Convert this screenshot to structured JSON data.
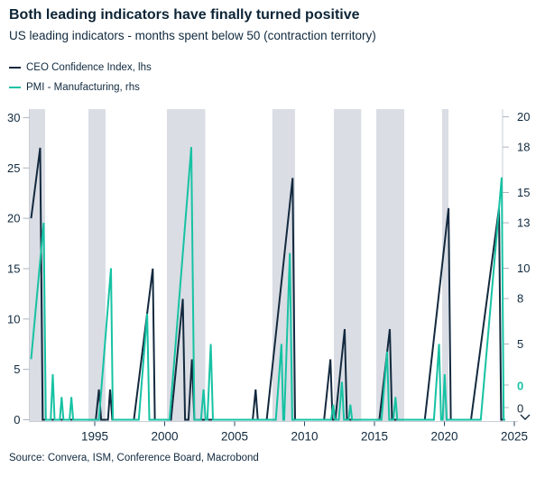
{
  "header": {
    "title": "Both leading indicators have finally turned positive",
    "subtitle": "US leading indicators - months spent below 50 (contraction territory)"
  },
  "source": "Source: Convera, ISM, Conference Board, Macrobond",
  "colors": {
    "navy": "#13293e",
    "teal": "#16c2a3",
    "band": "#dadde4",
    "axis_line": "#c9cdd6",
    "side_tick": "#aeb5c0",
    "bottom_tick": "#2a4763",
    "text": "#10293e"
  },
  "chart_data": {
    "type": "line",
    "title": "Both leading indicators have finally turned positive",
    "subtitle": "US leading indicators - months spent below 50 (contraction territory)",
    "legend_position": "top-left",
    "grid": false,
    "x_axis": {
      "ticks": [
        1995,
        2000,
        2005,
        2010,
        2015,
        2020,
        2025
      ],
      "range": [
        1990.35,
        2025.8
      ]
    },
    "left_axis": {
      "side": "left",
      "ticks": [
        0,
        5,
        10,
        15,
        20,
        25,
        30
      ],
      "range": [
        0,
        31
      ]
    },
    "right_axis": {
      "side": "right",
      "ticks": [
        {
          "label": "20",
          "value": 20
        },
        {
          "label": "18",
          "value": 18
        },
        {
          "label": "15",
          "value": 15
        },
        {
          "label": "13",
          "value": 13
        },
        {
          "label": "10",
          "value": 10
        },
        {
          "label": "8",
          "value": 8
        },
        {
          "label": "5",
          "value": 5
        }
      ],
      "range": [
        0,
        20.5
      ],
      "last_value_labels": [
        {
          "text": "0",
          "series": "PMI - Manufacturing, rhs",
          "color": "teal"
        },
        {
          "text": "0",
          "series": "CEO Confidence Index, lhs",
          "color": "navy"
        }
      ]
    },
    "shaded_bands": [
      [
        1990.35,
        1991.45
      ],
      [
        1994.55,
        1995.77
      ],
      [
        2000.16,
        2002.9
      ],
      [
        2007.7,
        2009.32
      ],
      [
        2012.1,
        2014.05
      ],
      [
        2015.13,
        2017.13
      ],
      [
        2019.84,
        2020.29
      ]
    ],
    "series": [
      {
        "name": "CEO Confidence Index, lhs",
        "axis": "lhs",
        "color_key": "navy",
        "points": [
          [
            1990.45,
            20
          ],
          [
            1991.1,
            27
          ],
          [
            1991.28,
            0
          ],
          [
            1995.08,
            0
          ],
          [
            1995.3,
            3
          ],
          [
            1995.46,
            0
          ],
          [
            1995.95,
            0
          ],
          [
            1996.1,
            3
          ],
          [
            1996.26,
            0
          ],
          [
            1997.8,
            0
          ],
          [
            1999.15,
            15
          ],
          [
            1999.3,
            0
          ],
          [
            2000.45,
            0
          ],
          [
            2001.3,
            12
          ],
          [
            2001.46,
            0
          ],
          [
            2001.7,
            0
          ],
          [
            2001.95,
            6
          ],
          [
            2002.12,
            0
          ],
          [
            2006.3,
            0
          ],
          [
            2006.5,
            3
          ],
          [
            2006.66,
            0
          ],
          [
            2007.3,
            0
          ],
          [
            2009.15,
            24
          ],
          [
            2009.32,
            0
          ],
          [
            2011.4,
            0
          ],
          [
            2011.85,
            6
          ],
          [
            2012.0,
            0
          ],
          [
            2012.2,
            0
          ],
          [
            2012.87,
            9
          ],
          [
            2013.03,
            0
          ],
          [
            2015.35,
            0
          ],
          [
            2016.1,
            9
          ],
          [
            2016.26,
            0
          ],
          [
            2018.6,
            0
          ],
          [
            2020.3,
            21
          ],
          [
            2020.46,
            0
          ],
          [
            2021.9,
            0
          ],
          [
            2023.9,
            21
          ],
          [
            2024.06,
            0
          ],
          [
            2024.35,
            0
          ]
        ]
      },
      {
        "name": "PMI - Manufacturing, rhs",
        "axis": "rhs",
        "color_key": "teal",
        "points": [
          [
            1990.45,
            4
          ],
          [
            1991.35,
            13
          ],
          [
            1991.5,
            0
          ],
          [
            1991.85,
            0
          ],
          [
            1992.0,
            3
          ],
          [
            1992.13,
            0
          ],
          [
            1992.5,
            0
          ],
          [
            1992.63,
            1.5
          ],
          [
            1992.76,
            0
          ],
          [
            1993.2,
            0
          ],
          [
            1993.33,
            1.5
          ],
          [
            1993.46,
            0
          ],
          [
            1995.3,
            0
          ],
          [
            1996.16,
            10
          ],
          [
            1996.3,
            0
          ],
          [
            1998.15,
            0
          ],
          [
            1998.75,
            7
          ],
          [
            1998.9,
            0
          ],
          [
            2000.35,
            0
          ],
          [
            2001.9,
            18
          ],
          [
            2002.12,
            0
          ],
          [
            2002.6,
            0
          ],
          [
            2002.78,
            2
          ],
          [
            2002.92,
            0
          ],
          [
            2003.05,
            0
          ],
          [
            2003.3,
            5
          ],
          [
            2003.45,
            0
          ],
          [
            2007.95,
            0
          ],
          [
            2008.35,
            5
          ],
          [
            2008.48,
            0
          ],
          [
            2008.55,
            0
          ],
          [
            2008.95,
            11
          ],
          [
            2009.12,
            0
          ],
          [
            2011.9,
            0
          ],
          [
            2012.05,
            1
          ],
          [
            2012.18,
            0
          ],
          [
            2012.45,
            0
          ],
          [
            2012.68,
            2.5
          ],
          [
            2012.82,
            0
          ],
          [
            2013.15,
            0
          ],
          [
            2013.28,
            1
          ],
          [
            2013.4,
            0
          ],
          [
            2015.5,
            0
          ],
          [
            2015.9,
            4.5
          ],
          [
            2016.05,
            0
          ],
          [
            2016.35,
            0
          ],
          [
            2016.5,
            1.5
          ],
          [
            2016.63,
            0
          ],
          [
            2019.25,
            0
          ],
          [
            2019.62,
            5
          ],
          [
            2019.76,
            0
          ],
          [
            2019.88,
            0
          ],
          [
            2020.02,
            3
          ],
          [
            2020.16,
            0
          ],
          [
            2022.6,
            0
          ],
          [
            2024.1,
            16
          ],
          [
            2024.24,
            0
          ],
          [
            2024.35,
            0
          ]
        ]
      }
    ]
  }
}
